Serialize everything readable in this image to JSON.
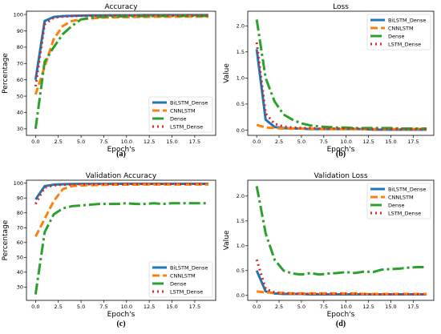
{
  "chart_data": [
    {
      "panel_label": "(a)",
      "type": "line",
      "title": "Accuracy",
      "xlabel": "Epoch's",
      "ylabel": "Percentage",
      "xlim": [
        -1,
        19.8
      ],
      "ylim": [
        26,
        102
      ],
      "xticks": [
        0,
        2.5,
        5,
        7.5,
        10,
        12.5,
        15,
        17.5
      ],
      "xtick_labels": [
        "0.0",
        "2.5",
        "5.0",
        "7.5",
        "10.0",
        "12.5",
        "15.0",
        "17.5"
      ],
      "yticks": [
        30,
        40,
        50,
        60,
        70,
        80,
        90,
        100
      ],
      "ytick_labels": [
        "30",
        "40",
        "50",
        "60",
        "70",
        "80",
        "90",
        "100"
      ],
      "legend": "bottom-right",
      "x": [
        0,
        1,
        2,
        3,
        4,
        5,
        6,
        7,
        8,
        9,
        10,
        11,
        12,
        13,
        14,
        15,
        16,
        17,
        18,
        19
      ],
      "series": [
        {
          "name": "BiLSTM_Dense",
          "color": "#1f77b4",
          "dash": "",
          "values": [
            60,
            96,
            98.5,
            99,
            99.2,
            99.3,
            99.4,
            99.4,
            99.5,
            99.5,
            99.5,
            99.5,
            99.6,
            99.6,
            99.6,
            99.6,
            99.6,
            99.6,
            99.6,
            99.6
          ]
        },
        {
          "name": "CNNLSTM",
          "color": "#ff7f0e",
          "dash": "9,4",
          "values": [
            51,
            68,
            85,
            93,
            96,
            97,
            97.5,
            98,
            98.2,
            98.3,
            98.4,
            98.5,
            98.5,
            98.6,
            98.6,
            98.6,
            98.7,
            98.7,
            98.7,
            98.7
          ]
        },
        {
          "name": "Dense",
          "color": "#2ca02c",
          "dash": "14,4,3,4",
          "values": [
            30,
            71,
            80,
            88,
            93,
            97,
            98,
            98.5,
            98.7,
            98.8,
            98.9,
            99,
            99,
            99,
            99.1,
            99.1,
            99.1,
            99.1,
            99.1,
            99.1
          ]
        },
        {
          "name": "LSTM_Dense",
          "color": "#d62728",
          "dash": "2,4",
          "values": [
            56,
            94,
            98,
            98.7,
            99,
            99.2,
            99.3,
            99.3,
            99.4,
            99.4,
            99.4,
            99.5,
            99.5,
            99.5,
            99.5,
            99.5,
            99.5,
            99.5,
            99.5,
            99.5
          ]
        }
      ]
    },
    {
      "panel_label": "(b)",
      "type": "line",
      "title": "Loss",
      "xlabel": "Epoch's",
      "ylabel": "Value",
      "xlim": [
        -1,
        19.8
      ],
      "ylim": [
        -0.1,
        2.28
      ],
      "xticks": [
        0,
        2.5,
        5,
        7.5,
        10,
        12.5,
        15,
        17.5
      ],
      "xtick_labels": [
        "0.0",
        "2.5",
        "5.0",
        "7.5",
        "10.0",
        "12.5",
        "15.0",
        "17.5"
      ],
      "yticks": [
        0,
        0.5,
        1.0,
        1.5,
        2.0
      ],
      "ytick_labels": [
        "0.0",
        "0.5",
        "1.0",
        "1.5",
        "2.0"
      ],
      "legend": "top-right",
      "x": [
        0,
        1,
        2,
        3,
        4,
        5,
        6,
        7,
        8,
        9,
        10,
        11,
        12,
        13,
        14,
        15,
        16,
        17,
        18,
        19
      ],
      "series": [
        {
          "name": "BiLSTM_Dense",
          "color": "#1f77b4",
          "dash": "",
          "values": [
            1.55,
            0.2,
            0.06,
            0.04,
            0.03,
            0.03,
            0.02,
            0.02,
            0.02,
            0.02,
            0.02,
            0.02,
            0.02,
            0.01,
            0.01,
            0.01,
            0.01,
            0.01,
            0.01,
            0.01
          ]
        },
        {
          "name": "CNNLSTM",
          "color": "#ff7f0e",
          "dash": "9,4",
          "values": [
            0.1,
            0.05,
            0.04,
            0.03,
            0.03,
            0.03,
            0.03,
            0.02,
            0.02,
            0.02,
            0.02,
            0.02,
            0.02,
            0.02,
            0.02,
            0.02,
            0.02,
            0.02,
            0.02,
            0.02
          ]
        },
        {
          "name": "Dense",
          "color": "#2ca02c",
          "dash": "14,4,3,4",
          "values": [
            2.12,
            1.0,
            0.55,
            0.3,
            0.2,
            0.13,
            0.09,
            0.07,
            0.06,
            0.05,
            0.05,
            0.04,
            0.04,
            0.04,
            0.04,
            0.04,
            0.03,
            0.03,
            0.03,
            0.03
          ]
        },
        {
          "name": "LSTM_Dense",
          "color": "#d62728",
          "dash": "2,4",
          "values": [
            1.68,
            0.32,
            0.12,
            0.07,
            0.05,
            0.04,
            0.04,
            0.03,
            0.03,
            0.03,
            0.03,
            0.03,
            0.02,
            0.02,
            0.02,
            0.02,
            0.02,
            0.02,
            0.02,
            0.02
          ]
        }
      ]
    },
    {
      "panel_label": "(c)",
      "type": "line",
      "title": "Validation Accuracy",
      "xlabel": "Epoch's",
      "ylabel": "Percentage",
      "xlim": [
        -1,
        19.8
      ],
      "ylim": [
        21,
        102
      ],
      "xticks": [
        0,
        2.5,
        5,
        7.5,
        10,
        12.5,
        15,
        17.5
      ],
      "xtick_labels": [
        "0.0",
        "2.5",
        "5.0",
        "7.5",
        "10.0",
        "12.5",
        "15.0",
        "17.5"
      ],
      "yticks": [
        30,
        40,
        50,
        60,
        70,
        80,
        90,
        100
      ],
      "ytick_labels": [
        "30",
        "40",
        "50",
        "60",
        "70",
        "80",
        "90",
        "100"
      ],
      "legend": "bottom-right",
      "x": [
        0,
        1,
        2,
        3,
        4,
        5,
        6,
        7,
        8,
        9,
        10,
        11,
        12,
        13,
        14,
        15,
        16,
        17,
        18,
        19
      ],
      "series": [
        {
          "name": "BiLSTM_Dense",
          "color": "#1f77b4",
          "dash": "",
          "values": [
            89,
            98,
            99,
            99.3,
            99.4,
            99.5,
            99.5,
            99.5,
            99.5,
            99.6,
            99.6,
            99.6,
            99.6,
            99.6,
            99.6,
            99.6,
            99.6,
            99.6,
            99.6,
            99.6
          ]
        },
        {
          "name": "CNNLSTM",
          "color": "#ff7f0e",
          "dash": "9,4",
          "values": [
            64,
            76,
            88,
            96,
            98,
            98.5,
            98.7,
            98.8,
            98.9,
            99,
            99,
            99,
            99.1,
            99.1,
            99.1,
            99.1,
            99.1,
            99.1,
            99.1,
            99.1
          ]
        },
        {
          "name": "Dense",
          "color": "#2ca02c",
          "dash": "14,4,3,4",
          "values": [
            25,
            67,
            79,
            83,
            84.5,
            85,
            85.5,
            86,
            86,
            86,
            86.5,
            86,
            86,
            86.5,
            86,
            86.5,
            86.5,
            86.5,
            86.5,
            86.5
          ]
        },
        {
          "name": "LSTM_Dense",
          "color": "#d62728",
          "dash": "2,4",
          "values": [
            86,
            97,
            98.5,
            99,
            99.2,
            99.3,
            99.3,
            99.4,
            99.4,
            99.4,
            99.4,
            99.5,
            99.5,
            99.5,
            99.5,
            99.5,
            99.5,
            99.5,
            99.5,
            99.5
          ]
        }
      ]
    },
    {
      "panel_label": "(d)",
      "type": "line",
      "title": "Validation Loss",
      "xlabel": "Epoch's",
      "ylabel": "Value",
      "xlim": [
        -1,
        19.8
      ],
      "ylim": [
        -0.1,
        2.32
      ],
      "xticks": [
        0,
        2.5,
        5,
        7.5,
        10,
        12.5,
        15,
        17.5
      ],
      "xtick_labels": [
        "0.0",
        "2.5",
        "5.0",
        "7.5",
        "10.0",
        "12.5",
        "15.0",
        "17.5"
      ],
      "yticks": [
        0,
        0.5,
        1.0,
        1.5,
        2.0
      ],
      "ytick_labels": [
        "0.0",
        "0.5",
        "1.0",
        "1.5",
        "2.0"
      ],
      "legend": "top-right",
      "x": [
        0,
        1,
        2,
        3,
        4,
        5,
        6,
        7,
        8,
        9,
        10,
        11,
        12,
        13,
        14,
        15,
        16,
        17,
        18,
        19
      ],
      "series": [
        {
          "name": "BiLSTM_Dense",
          "color": "#1f77b4",
          "dash": "",
          "values": [
            0.5,
            0.08,
            0.04,
            0.03,
            0.03,
            0.03,
            0.02,
            0.02,
            0.02,
            0.02,
            0.02,
            0.02,
            0.02,
            0.02,
            0.02,
            0.02,
            0.02,
            0.02,
            0.02,
            0.02
          ]
        },
        {
          "name": "CNNLSTM",
          "color": "#ff7f0e",
          "dash": "9,4",
          "values": [
            0.08,
            0.06,
            0.05,
            0.05,
            0.04,
            0.04,
            0.04,
            0.04,
            0.04,
            0.04,
            0.04,
            0.04,
            0.03,
            0.03,
            0.03,
            0.03,
            0.03,
            0.03,
            0.03,
            0.03
          ]
        },
        {
          "name": "Dense",
          "color": "#2ca02c",
          "dash": "14,4,3,4",
          "values": [
            2.2,
            1.25,
            0.72,
            0.5,
            0.44,
            0.42,
            0.45,
            0.42,
            0.44,
            0.45,
            0.47,
            0.45,
            0.48,
            0.47,
            0.52,
            0.53,
            0.54,
            0.56,
            0.57,
            0.57
          ]
        },
        {
          "name": "LSTM_Dense",
          "color": "#d62728",
          "dash": "2,4",
          "values": [
            0.72,
            0.13,
            0.06,
            0.04,
            0.04,
            0.03,
            0.03,
            0.03,
            0.03,
            0.03,
            0.03,
            0.03,
            0.03,
            0.02,
            0.02,
            0.02,
            0.02,
            0.02,
            0.02,
            0.02
          ]
        }
      ]
    }
  ]
}
